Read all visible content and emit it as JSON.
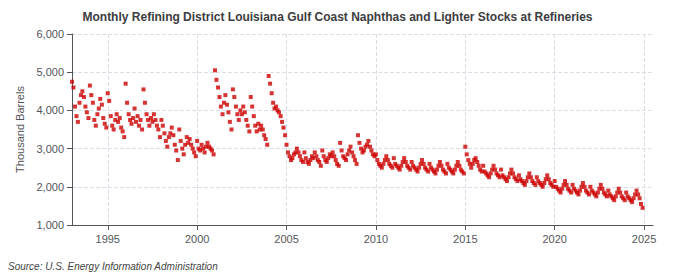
{
  "chart_data": {
    "type": "scatter",
    "title": "Monthly Refining District Louisiana Gulf Coast Naphthas and Lighter Stocks at Refineries",
    "ylabel": "Thousand Barrels",
    "annotations": [
      "Source: U.S. Energy Information Administration"
    ],
    "color": "#cc0000",
    "marker": "square",
    "grid": true,
    "xlim": [
      1993.0,
      2025.5
    ],
    "xticks": [
      1995,
      2000,
      2005,
      2010,
      2015,
      2020,
      2025
    ],
    "ylim": [
      1000,
      6000
    ],
    "yticks": [
      {
        "value": 1000,
        "label": "1,000"
      },
      {
        "value": 2000,
        "label": "2,000"
      },
      {
        "value": 3000,
        "label": "3,000"
      },
      {
        "value": 4000,
        "label": "4,000"
      },
      {
        "value": 5000,
        "label": "5,000"
      },
      {
        "value": 6000,
        "label": "6,000"
      }
    ],
    "x": [
      1993.0,
      1993.08,
      1993.17,
      1993.25,
      1993.33,
      1993.42,
      1993.5,
      1993.58,
      1993.67,
      1993.75,
      1993.83,
      1993.92,
      1994.0,
      1994.08,
      1994.17,
      1994.25,
      1994.33,
      1994.42,
      1994.5,
      1994.58,
      1994.67,
      1994.75,
      1994.83,
      1994.92,
      1995.0,
      1995.08,
      1995.17,
      1995.25,
      1995.33,
      1995.42,
      1995.5,
      1995.58,
      1995.67,
      1995.75,
      1995.83,
      1995.92,
      1996.0,
      1996.08,
      1996.17,
      1996.25,
      1996.33,
      1996.42,
      1996.5,
      1996.58,
      1996.67,
      1996.75,
      1996.83,
      1996.92,
      1997.0,
      1997.08,
      1997.17,
      1997.25,
      1997.33,
      1997.42,
      1997.5,
      1997.58,
      1997.67,
      1997.75,
      1997.83,
      1997.92,
      1998.0,
      1998.08,
      1998.17,
      1998.25,
      1998.33,
      1998.42,
      1998.5,
      1998.58,
      1998.67,
      1998.75,
      1998.83,
      1998.92,
      1999.0,
      1999.08,
      1999.17,
      1999.25,
      1999.33,
      1999.42,
      1999.5,
      1999.58,
      1999.67,
      1999.75,
      1999.83,
      1999.92,
      2000.0,
      2000.08,
      2000.17,
      2000.25,
      2000.33,
      2000.42,
      2000.5,
      2000.58,
      2000.67,
      2000.75,
      2000.83,
      2000.92,
      2001.0,
      2001.08,
      2001.17,
      2001.25,
      2001.33,
      2001.42,
      2001.5,
      2001.58,
      2001.67,
      2001.75,
      2001.83,
      2001.92,
      2002.0,
      2002.08,
      2002.17,
      2002.25,
      2002.33,
      2002.42,
      2002.5,
      2002.58,
      2002.67,
      2002.75,
      2002.83,
      2002.92,
      2003.0,
      2003.08,
      2003.17,
      2003.25,
      2003.33,
      2003.42,
      2003.5,
      2003.58,
      2003.67,
      2003.75,
      2003.83,
      2003.92,
      2004.0,
      2004.08,
      2004.17,
      2004.25,
      2004.33,
      2004.42,
      2004.5,
      2004.58,
      2004.67,
      2004.75,
      2004.83,
      2004.92,
      2005.0,
      2005.08,
      2005.17,
      2005.25,
      2005.33,
      2005.42,
      2005.5,
      2005.58,
      2005.67,
      2005.75,
      2005.83,
      2005.92,
      2006.0,
      2006.08,
      2006.17,
      2006.25,
      2006.33,
      2006.42,
      2006.5,
      2006.58,
      2006.67,
      2006.75,
      2006.83,
      2006.92,
      2007.0,
      2007.08,
      2007.17,
      2007.25,
      2007.33,
      2007.42,
      2007.5,
      2007.58,
      2007.67,
      2007.75,
      2007.83,
      2007.92,
      2008.0,
      2008.08,
      2008.17,
      2008.25,
      2008.33,
      2008.42,
      2008.5,
      2008.58,
      2008.67,
      2008.75,
      2008.83,
      2008.92,
      2009.0,
      2009.08,
      2009.17,
      2009.25,
      2009.33,
      2009.42,
      2009.5,
      2009.58,
      2009.67,
      2009.75,
      2009.83,
      2009.92,
      2010.0,
      2010.08,
      2010.17,
      2010.25,
      2010.33,
      2010.42,
      2010.5,
      2010.58,
      2010.67,
      2010.75,
      2010.83,
      2010.92,
      2011.0,
      2011.08,
      2011.17,
      2011.25,
      2011.33,
      2011.42,
      2011.5,
      2011.58,
      2011.67,
      2011.75,
      2011.83,
      2011.92,
      2012.0,
      2012.08,
      2012.17,
      2012.25,
      2012.33,
      2012.42,
      2012.5,
      2012.58,
      2012.67,
      2012.75,
      2012.83,
      2012.92,
      2013.0,
      2013.08,
      2013.17,
      2013.25,
      2013.33,
      2013.42,
      2013.5,
      2013.58,
      2013.67,
      2013.75,
      2013.83,
      2013.92,
      2014.0,
      2014.08,
      2014.17,
      2014.25,
      2014.33,
      2014.42,
      2014.5,
      2014.58,
      2014.67,
      2014.75,
      2014.83,
      2014.92,
      2015.0,
      2015.08,
      2015.17,
      2015.25,
      2015.33,
      2015.42,
      2015.5,
      2015.58,
      2015.67,
      2015.75,
      2015.83,
      2015.92,
      2016.0,
      2016.08,
      2016.17,
      2016.25,
      2016.33,
      2016.42,
      2016.5,
      2016.58,
      2016.67,
      2016.75,
      2016.83,
      2016.92,
      2017.0,
      2017.08,
      2017.17,
      2017.25,
      2017.33,
      2017.42,
      2017.5,
      2017.58,
      2017.67,
      2017.75,
      2017.83,
      2017.92,
      2018.0,
      2018.08,
      2018.17,
      2018.25,
      2018.33,
      2018.42,
      2018.5,
      2018.58,
      2018.67,
      2018.75,
      2018.83,
      2018.92,
      2019.0,
      2019.08,
      2019.17,
      2019.25,
      2019.33,
      2019.42,
      2019.5,
      2019.58,
      2019.67,
      2019.75,
      2019.83,
      2019.92,
      2020.0,
      2020.08,
      2020.17,
      2020.25,
      2020.33,
      2020.42,
      2020.5,
      2020.58,
      2020.67,
      2020.75,
      2020.83,
      2020.92,
      2021.0,
      2021.08,
      2021.17,
      2021.25,
      2021.33,
      2021.42,
      2021.5,
      2021.58,
      2021.67,
      2021.75,
      2021.83,
      2021.92,
      2022.0,
      2022.08,
      2022.17,
      2022.25,
      2022.33,
      2022.42,
      2022.5,
      2022.58,
      2022.67,
      2022.75,
      2022.83,
      2022.92,
      2023.0,
      2023.08,
      2023.17,
      2023.25,
      2023.33,
      2023.42,
      2023.5,
      2023.58,
      2023.67,
      2023.75,
      2023.83,
      2023.92,
      2024.0,
      2024.08,
      2024.17,
      2024.25,
      2024.33,
      2024.42,
      2024.5,
      2024.58,
      2024.67,
      2024.75,
      2024.83,
      2024.92
    ],
    "values": [
      4750,
      4600,
      4100,
      3850,
      3700,
      4200,
      4400,
      4500,
      4350,
      4100,
      3950,
      3800,
      4650,
      4400,
      4200,
      3750,
      3600,
      3900,
      4050,
      4300,
      4150,
      3800,
      3650,
      3550,
      4450,
      4250,
      3850,
      3600,
      3500,
      3750,
      3900,
      3700,
      3800,
      3550,
      3450,
      3300,
      4700,
      4200,
      3900,
      3750,
      3650,
      3800,
      4050,
      3700,
      3850,
      3600,
      3750,
      3500,
      4550,
      4200,
      3900,
      3750,
      3600,
      3800,
      3700,
      3900,
      3750,
      3600,
      3500,
      3300,
      3750,
      3600,
      3400,
      3200,
      3050,
      3300,
      3400,
      3550,
      3350,
      3100,
      2950,
      2700,
      3500,
      3200,
      3000,
      2850,
      3100,
      3300,
      3150,
      3250,
      3100,
      3000,
      2900,
      2800,
      3200,
      3000,
      2950,
      3100,
      3000,
      2900,
      3050,
      3150,
      3050,
      3000,
      2950,
      2850,
      5050,
      4800,
      4600,
      4350,
      4100,
      3900,
      4200,
      4400,
      4150,
      3950,
      3700,
      3500,
      4550,
      4350,
      4100,
      3900,
      3750,
      4000,
      3900,
      4100,
      3950,
      3750,
      3600,
      3450,
      4350,
      4100,
      3850,
      3600,
      3450,
      3650,
      3500,
      3600,
      3500,
      3350,
      3250,
      3100,
      4900,
      4700,
      4450,
      4200,
      4050,
      4100,
      4000,
      3950,
      3850,
      3700,
      3550,
      3350,
      3100,
      2900,
      2800,
      2700,
      2750,
      2850,
      2900,
      3000,
      2900,
      2800,
      2700,
      2650,
      2900,
      2750,
      2650,
      2600,
      2700,
      2800,
      2750,
      2900,
      2800,
      2700,
      2650,
      2550,
      2950,
      2800,
      2700,
      2650,
      2750,
      2850,
      2800,
      2900,
      2800,
      2700,
      2600,
      2550,
      3150,
      2950,
      2800,
      2750,
      2700,
      2850,
      2950,
      3050,
      2900,
      2800,
      2700,
      2600,
      3350,
      3150,
      3000,
      2900,
      2950,
      3050,
      3100,
      3200,
      3050,
      2950,
      2850,
      2800,
      2850,
      2700,
      2600,
      2550,
      2500,
      2600,
      2700,
      2800,
      2700,
      2600,
      2550,
      2500,
      2750,
      2600,
      2550,
      2500,
      2450,
      2550,
      2650,
      2750,
      2650,
      2550,
      2500,
      2450,
      2650,
      2550,
      2500,
      2450,
      2400,
      2500,
      2600,
      2700,
      2600,
      2500,
      2450,
      2400,
      2600,
      2500,
      2450,
      2400,
      2350,
      2450,
      2550,
      2650,
      2550,
      2450,
      2400,
      2350,
      2600,
      2500,
      2450,
      2400,
      2350,
      2450,
      2550,
      2650,
      2550,
      2450,
      2400,
      2350,
      3050,
      2850,
      2700,
      2600,
      2500,
      2600,
      2700,
      2750,
      2650,
      2550,
      2450,
      2400,
      2550,
      2400,
      2350,
      2300,
      2250,
      2350,
      2450,
      2550,
      2450,
      2350,
      2300,
      2250,
      2450,
      2300,
      2250,
      2200,
      2150,
      2250,
      2350,
      2450,
      2350,
      2250,
      2200,
      2150,
      2300,
      2200,
      2150,
      2100,
      2050,
      2150,
      2250,
      2350,
      2250,
      2150,
      2100,
      2050,
      2250,
      2150,
      2100,
      2050,
      2000,
      2100,
      2200,
      2300,
      2200,
      2100,
      2050,
      2000,
      2150,
      2000,
      1950,
      1900,
      1850,
      1950,
      2050,
      2150,
      2050,
      1950,
      1900,
      1850,
      2050,
      1950,
      1900,
      1850,
      1800,
      1900,
      2000,
      2100,
      2000,
      1900,
      1850,
      1800,
      2000,
      1900,
      1850,
      1800,
      1750,
      1850,
      1950,
      2050,
      1950,
      1850,
      1800,
      1750,
      1900,
      1800,
      1750,
      1700,
      1650,
      1750,
      1850,
      1950,
      1850,
      1750,
      1700,
      1650,
      1850,
      1750,
      1700,
      1650,
      1600,
      1700,
      1800,
      1900,
      1800,
      1700,
      1550,
      1450
    ]
  }
}
